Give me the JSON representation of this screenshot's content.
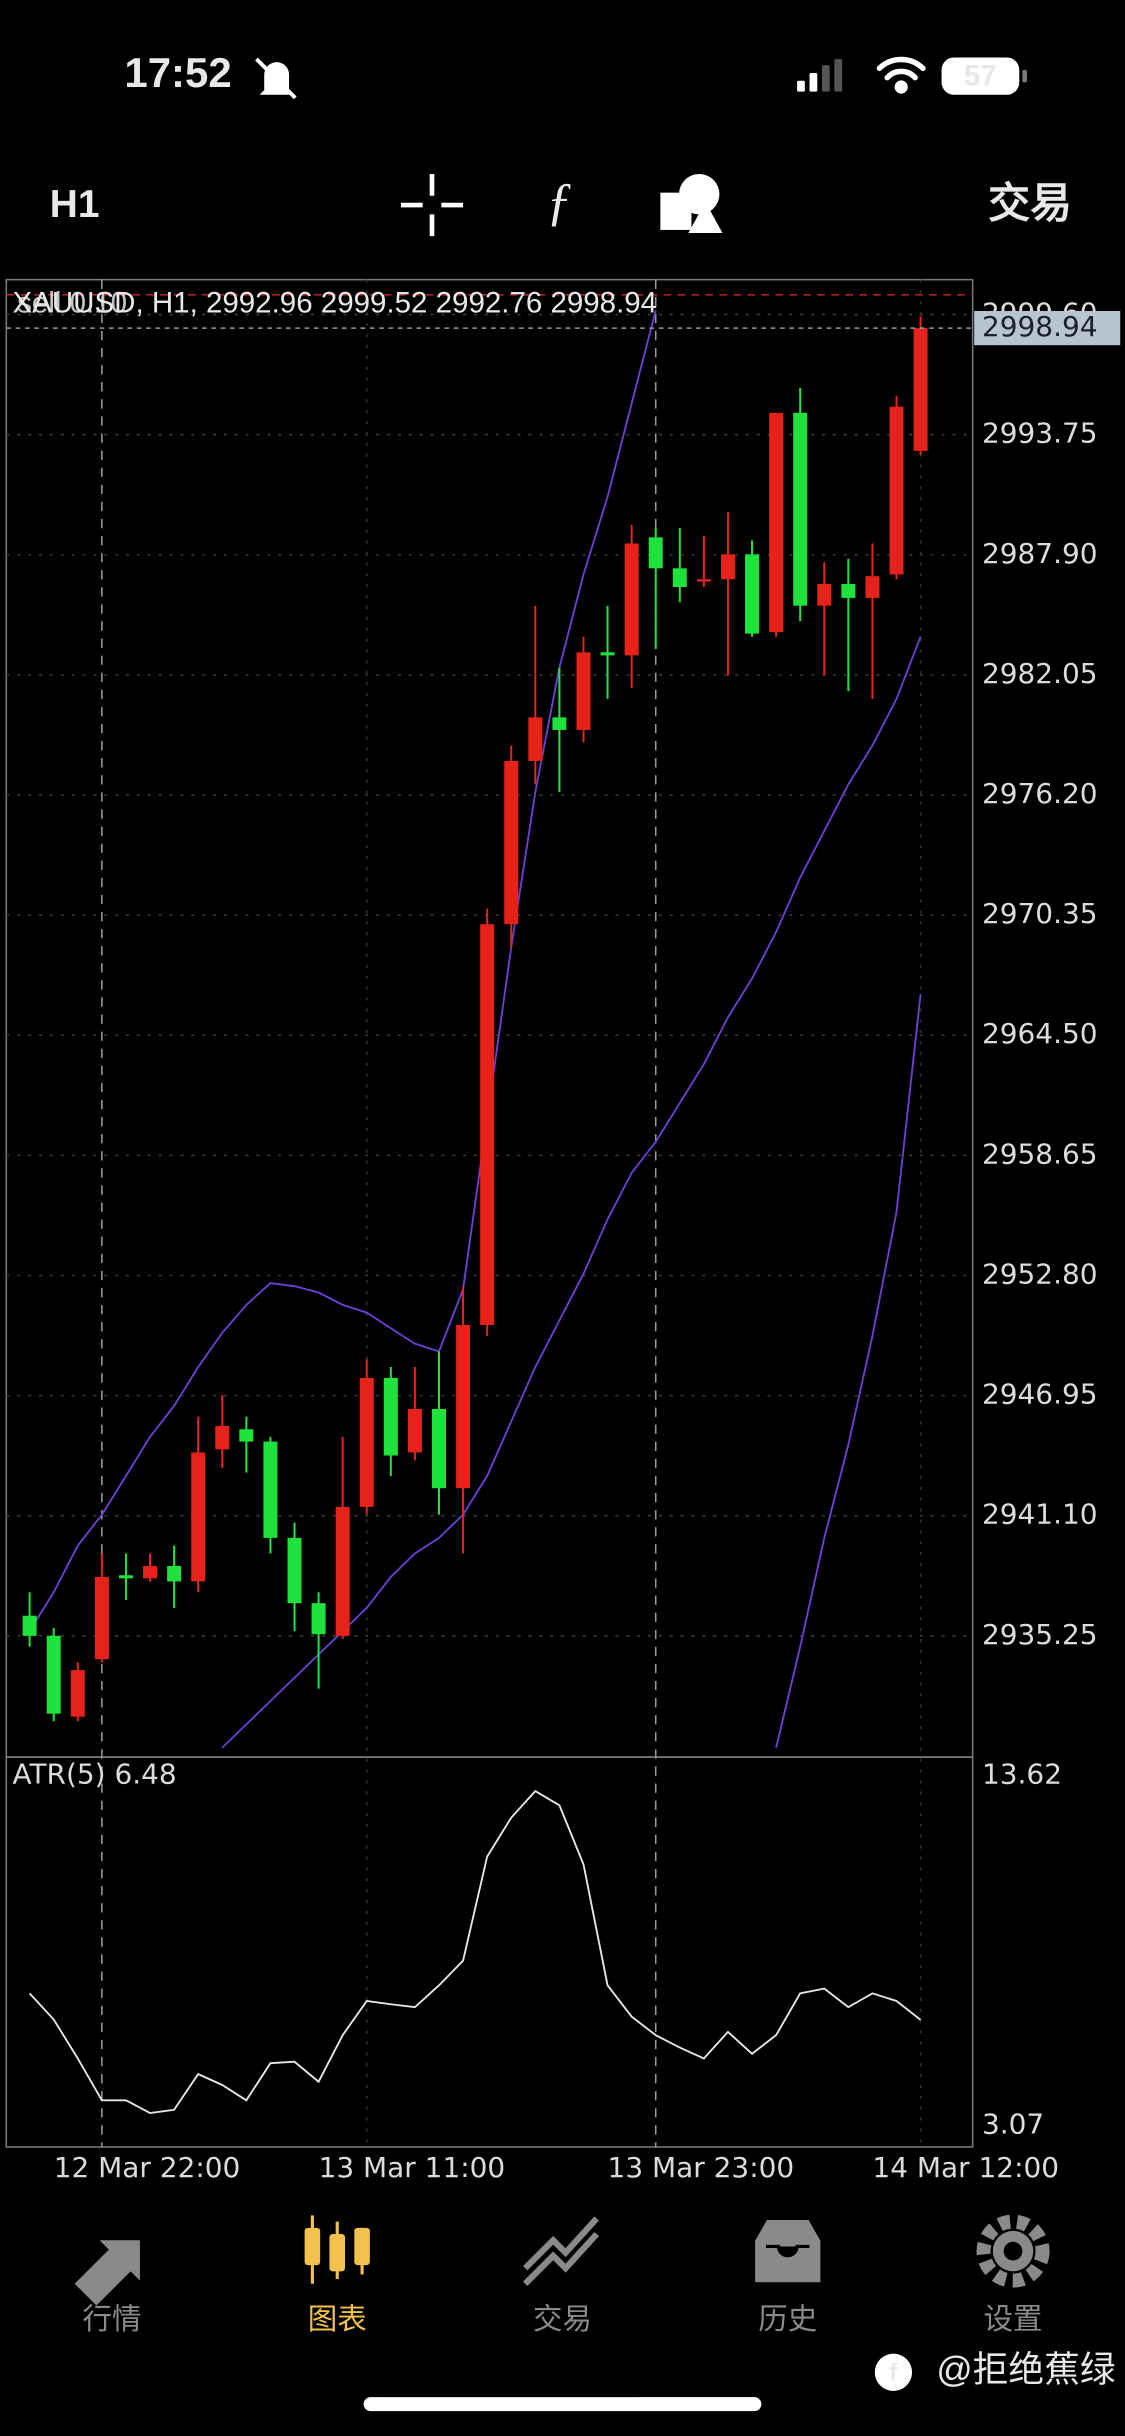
{
  "status_bar": {
    "time": "17:52",
    "battery": "57"
  },
  "toolbar": {
    "timeframe": "H1",
    "trade": "交易"
  },
  "chart_data": [
    {
      "type": "candlestick",
      "title": "XAUUSD, H1, 2992.96 2999.52 2992.76 2998.94",
      "order_label": "sell 0.10",
      "order_price": 3000.56,
      "categories": [
        null,
        null,
        null,
        "12 Mar 22:00",
        null,
        null,
        null,
        null,
        null,
        null,
        null,
        null,
        null,
        null,
        "13 Mar 11:00",
        null,
        null,
        null,
        null,
        null,
        null,
        null,
        null,
        null,
        null,
        null,
        "13 Mar 23:00",
        null,
        null,
        null,
        null,
        null,
        null,
        null,
        null,
        null,
        null,
        "14 Mar 12:00"
      ],
      "separators": [
        3,
        26
      ],
      "open": [
        2936.23,
        2935.25,
        2931.31,
        2934.11,
        2938.2,
        2938.05,
        2938.65,
        2937.9,
        2944.33,
        2945.31,
        2944.71,
        2940.02,
        2936.84,
        2935.25,
        2941.53,
        2947.81,
        2944.18,
        2946.3,
        2942.44,
        2950.39,
        2969.91,
        2977.86,
        2979.98,
        2979.37,
        2983.15,
        2983.0,
        2988.75,
        2987.24,
        2986.64,
        2986.71,
        2987.92,
        2984.14,
        2994.81,
        2985.42,
        2986.48,
        2985.8,
        2986.94,
        2992.96
      ],
      "high": [
        2937.37,
        2935.63,
        2933.96,
        2939.26,
        2939.26,
        2939.26,
        2939.64,
        2945.92,
        2946.98,
        2945.92,
        2944.94,
        2940.77,
        2937.37,
        2944.94,
        2948.72,
        2948.34,
        2948.34,
        2949.1,
        2952.28,
        2970.67,
        2978.61,
        2985.42,
        2982.4,
        2983.91,
        2985.42,
        2989.36,
        2989.21,
        2989.21,
        2988.83,
        2989.97,
        2988.6,
        2994.81,
        2996.02,
        2987.54,
        2987.7,
        2988.45,
        2995.64,
        2999.52
      ],
      "low": [
        2934.72,
        2931.09,
        2931.09,
        2933.96,
        2936.99,
        2937.9,
        2936.61,
        2937.37,
        2943.42,
        2943.2,
        2939.26,
        2935.48,
        2932.68,
        2935.1,
        2941.15,
        2943.04,
        2943.8,
        2941.15,
        2939.26,
        2949.86,
        2968.78,
        2976.72,
        2976.34,
        2978.76,
        2980.88,
        2981.41,
        2983.31,
        2985.58,
        2986.33,
        2982.02,
        2983.91,
        2983.91,
        2984.67,
        2982.02,
        2981.26,
        2980.88,
        2986.71,
        2992.76
      ],
      "close": [
        2935.25,
        2931.46,
        2933.58,
        2938.12,
        2938.05,
        2938.65,
        2937.9,
        2944.18,
        2945.47,
        2944.71,
        2940.02,
        2936.84,
        2935.33,
        2941.53,
        2947.81,
        2944.03,
        2946.3,
        2942.44,
        2950.39,
        2969.91,
        2977.86,
        2979.98,
        2979.37,
        2983.15,
        2983.0,
        2988.45,
        2987.24,
        2986.33,
        2986.71,
        2987.92,
        2984.06,
        2994.81,
        2985.42,
        2986.48,
        2985.8,
        2986.86,
        2995.11,
        2998.94
      ],
      "up_color": "#e5231b",
      "down_color": "#1fe23c",
      "bands": [
        {
          "color": "#6a40d2",
          "values": [
            2935.48,
            2937.37,
            2939.64,
            2941.15,
            2943.04,
            2944.94,
            2946.45,
            2948.34,
            2950.01,
            2951.37,
            2952.43,
            2952.28,
            2951.97,
            2951.37,
            2950.99,
            2950.23,
            2949.48,
            2949.1,
            2952.13,
            2960.45,
            2968.78,
            2976.34,
            2982.4,
            2986.94,
            2990.72,
            2995.26,
            2999.8,
            null,
            null,
            null,
            null,
            null,
            null,
            null,
            null,
            null,
            null,
            null
          ]
        },
        {
          "color": "#6a40d2",
          "values": [
            null,
            null,
            null,
            null,
            null,
            null,
            null,
            null,
            2929.8,
            2930.94,
            2932.07,
            2933.21,
            2934.34,
            2935.48,
            2936.61,
            2938.12,
            2939.26,
            2940.02,
            2941.15,
            2943.04,
            2945.69,
            2948.34,
            2950.61,
            2952.88,
            2955.53,
            2957.8,
            2959.31,
            2961.2,
            2963.09,
            2965.37,
            2967.26,
            2969.53,
            2972.18,
            2974.45,
            2976.72,
            2978.61,
            2980.88,
            2983.91
          ]
        },
        {
          "color": "#6a40d2",
          "values": [
            null,
            null,
            null,
            null,
            null,
            null,
            null,
            null,
            null,
            null,
            null,
            null,
            null,
            null,
            null,
            null,
            null,
            null,
            null,
            null,
            null,
            null,
            null,
            null,
            null,
            null,
            null,
            null,
            null,
            null,
            null,
            2929.8,
            2934.72,
            2940.02,
            2944.56,
            2949.86,
            2955.89,
            2966.5
          ]
        }
      ],
      "ylim": [
        2929.42,
        3001.3
      ],
      "yticks": [
        {
          "value": 2999.6,
          "label": "2999.60"
        },
        2993.75,
        {
          "value": 2987.9,
          "label": "2987.90"
        },
        2982.05,
        {
          "value": 2976.2,
          "label": "2976.20"
        },
        2970.35,
        {
          "value": 2964.5,
          "label": "2964.50"
        },
        2958.65,
        {
          "value": 2952.8,
          "label": "2952.80"
        },
        2946.95,
        {
          "value": 2941.1,
          "label": "2941.10"
        },
        2935.25
      ],
      "grid": true
    },
    {
      "type": "line",
      "title": "ATR(5) 6.48",
      "color": "#e6e6e6",
      "values": [
        7.21,
        6.49,
        5.42,
        4.27,
        4.27,
        3.92,
        4.01,
        4.99,
        4.69,
        4.27,
        5.29,
        5.33,
        4.78,
        6.06,
        7.0,
        6.91,
        6.83,
        7.43,
        8.11,
        10.97,
        12.04,
        12.77,
        12.38,
        10.76,
        7.43,
        6.57,
        6.06,
        5.72,
        5.42,
        6.15,
        5.55,
        6.06,
        7.21,
        7.34,
        6.83,
        7.21,
        7.0,
        6.48
      ],
      "ylim": [
        3.07,
        13.62
      ],
      "yticks": [
        13.62,
        3.07
      ]
    }
  ],
  "tab_bar": {
    "tabs": [
      "行情",
      "图表",
      "交易",
      "历史",
      "设置"
    ],
    "active": 1
  },
  "watermark": "@拒绝蕉绿"
}
